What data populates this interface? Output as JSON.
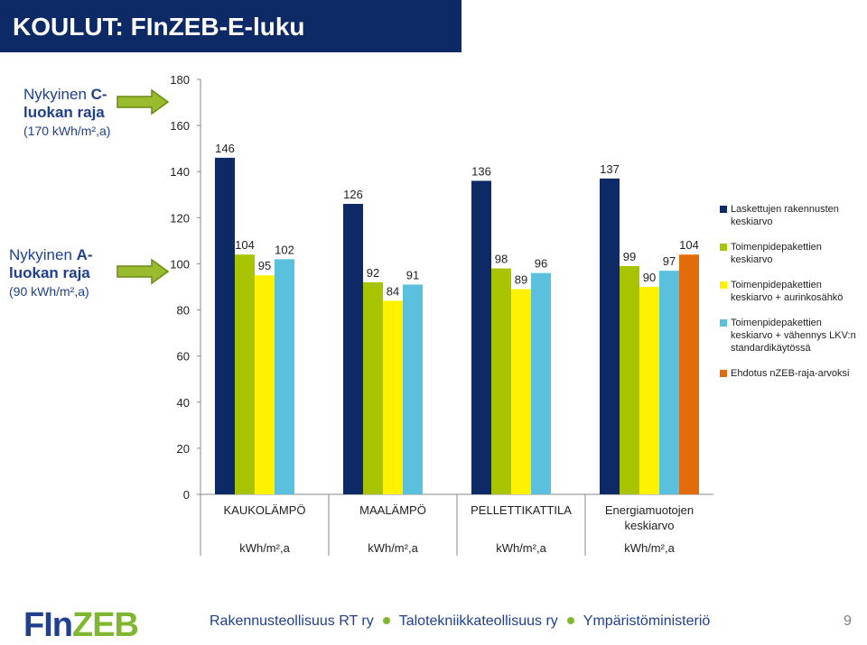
{
  "title": "KOULUT: FInZEB-E-luku",
  "limits": {
    "c": {
      "prefix": "Nykyinen ",
      "class": "C-",
      "line2": "luokan raja",
      "sub": "(170 kWh/m²,a)"
    },
    "a": {
      "prefix": "Nykyinen ",
      "class": "A-",
      "line2": "luokan raja",
      "sub": "(90 kWh/m²,a)"
    }
  },
  "colors": {
    "navy": "#0d2a66",
    "green": "#a8c400",
    "yellow": "#fff200",
    "cyan": "#5bc0de",
    "orange": "#e36c0a"
  },
  "chart_data": {
    "type": "bar",
    "categories": [
      "KAUKOLÄMPÖ",
      "MAALÄMPÖ",
      "PELLETTIKATTILA",
      "Energiamuotojen keskiarvo"
    ],
    "unit_label": "kWh/m²,a",
    "ylim": [
      0,
      180
    ],
    "yticks": [
      0,
      20,
      40,
      60,
      80,
      100,
      120,
      140,
      160,
      180
    ],
    "legend_position": "right",
    "series": [
      {
        "name": "Laskettujen rakennusten keskiarvo",
        "color": "#0d2a66",
        "values": [
          146,
          126,
          136,
          137
        ]
      },
      {
        "name": "Toimenpidepakettien keskiarvo",
        "color": "#a8c400",
        "values": [
          104,
          92,
          98,
          99
        ]
      },
      {
        "name": "Toimenpidepakettien keskiarvo + aurinkosähkö",
        "color": "#fff200",
        "values": [
          95,
          84,
          89,
          90
        ]
      },
      {
        "name": "Toimenpidepakettien keskiarvo +  vähennys LKV:n standardikäytössä",
        "color": "#5bc0de",
        "values": [
          102,
          91,
          96,
          97
        ]
      },
      {
        "name": "Ehdotus nZEB-raja-arvoksi",
        "color": "#e36c0a",
        "values": [
          null,
          null,
          null,
          104
        ]
      }
    ]
  },
  "footer": {
    "logo_a": "FIn",
    "logo_b": "ZEB",
    "orgs": [
      "Rakennusteollisuus RT ry",
      "Talotekniikkateollisuus ry",
      "Ympäristöministeriö"
    ],
    "page": "9"
  }
}
